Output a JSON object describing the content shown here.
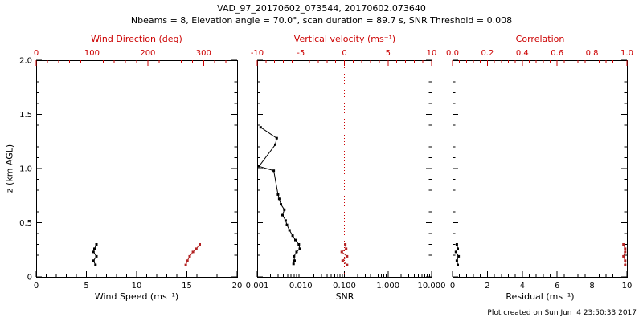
{
  "colors": {
    "background": "#ffffff",
    "black": "#000000",
    "axis_red": "#cc0000",
    "series_red": "#b22222"
  },
  "header": {
    "title": "VAD_97_20170602_073544, 20170602.073640",
    "subtitle": "Nbeams = 8, Elevation angle = 70.0°, scan duration = 89.7 s, SNR Threshold = 0.008"
  },
  "footer": {
    "created": "Plot created on Sun Jun  4 23:50:33 2017"
  },
  "y_axis": {
    "label": "z (km AGL)",
    "min": 0,
    "max": 2,
    "ticks": [
      0,
      0.5,
      1.0,
      1.5,
      2.0
    ],
    "tick_labels": [
      "0",
      "0.5",
      "1.0",
      "1.5",
      "2.0"
    ]
  },
  "chart_data": [
    {
      "name": "wind-speed-direction",
      "type": "line",
      "show_y_labels": true,
      "bottom_axis": {
        "label": "Wind Speed (ms⁻¹)",
        "scale": "linear",
        "min": 0,
        "max": 20,
        "ticks": [
          0,
          5,
          10,
          15,
          20
        ],
        "tick_labels": [
          "0",
          "5",
          "10",
          "15",
          "20"
        ]
      },
      "top_axis": {
        "label": "Wind Direction (deg)",
        "scale": "linear",
        "min": 0,
        "max": 360,
        "ticks": [
          0,
          100,
          200,
          300
        ],
        "tick_labels": [
          "0",
          "100",
          "200",
          "300"
        ]
      },
      "series": [
        {
          "name": "wind-speed",
          "color": "black",
          "axis": "bottom",
          "points": [
            [
              5.9,
              0.11
            ],
            [
              5.7,
              0.15
            ],
            [
              6.0,
              0.19
            ],
            [
              5.7,
              0.23
            ],
            [
              5.8,
              0.26
            ],
            [
              6.0,
              0.3
            ]
          ]
        },
        {
          "name": "wind-direction",
          "color": "red",
          "axis": "top",
          "points": [
            [
              268,
              0.11
            ],
            [
              271,
              0.15
            ],
            [
              275,
              0.19
            ],
            [
              281,
              0.23
            ],
            [
              287,
              0.26
            ],
            [
              293,
              0.3
            ]
          ]
        }
      ]
    },
    {
      "name": "snr-vertical-velocity",
      "type": "line",
      "show_y_labels": false,
      "zero_line": {
        "axis": "top",
        "value": 0
      },
      "bottom_axis": {
        "label": "SNR",
        "scale": "log",
        "min": 0.001,
        "max": 10,
        "ticks": [
          0.001,
          0.01,
          0.1,
          1,
          10
        ],
        "tick_labels": [
          "0.001",
          "0.010",
          "0.100",
          "1.000",
          "10.000"
        ]
      },
      "top_axis": {
        "label": "Vertical velocity (ms⁻¹)",
        "scale": "linear",
        "min": -10,
        "max": 10,
        "ticks": [
          -10,
          -5,
          0,
          5,
          10
        ],
        "tick_labels": [
          "-10",
          "-5",
          "0",
          "5",
          "10"
        ]
      },
      "series": [
        {
          "name": "snr-profile",
          "color": "black",
          "axis": "bottom",
          "points": [
            [
              0.0068,
              0.12
            ],
            [
              0.0072,
              0.15
            ],
            [
              0.007,
              0.19
            ],
            [
              0.008,
              0.23
            ],
            [
              0.0095,
              0.26
            ],
            [
              0.009,
              0.3
            ],
            [
              0.0075,
              0.34
            ],
            [
              0.0065,
              0.38
            ],
            [
              0.0055,
              0.43
            ],
            [
              0.0048,
              0.48
            ],
            [
              0.0045,
              0.52
            ],
            [
              0.0038,
              0.57
            ],
            [
              0.0042,
              0.62
            ],
            [
              0.0035,
              0.67
            ],
            [
              0.0032,
              0.72
            ],
            [
              0.003,
              0.76
            ],
            [
              0.0024,
              0.98
            ],
            [
              0.0011,
              1.02
            ],
            [
              0.0026,
              1.22
            ],
            [
              0.0028,
              1.28
            ],
            [
              0.0012,
              1.38
            ]
          ]
        },
        {
          "name": "vertical-velocity",
          "color": "red",
          "axis": "top",
          "points": [
            [
              0.3,
              0.11
            ],
            [
              -0.2,
              0.15
            ],
            [
              0.3,
              0.19
            ],
            [
              -0.3,
              0.23
            ],
            [
              0.2,
              0.26
            ],
            [
              0.1,
              0.3
            ]
          ]
        }
      ]
    },
    {
      "name": "residual-correlation",
      "type": "line",
      "show_y_labels": false,
      "bottom_axis": {
        "label": "Residual (ms⁻¹)",
        "scale": "linear",
        "min": 0,
        "max": 10,
        "ticks": [
          0,
          2,
          4,
          6,
          8,
          10
        ],
        "tick_labels": [
          "0",
          "2",
          "4",
          "6",
          "8",
          "10"
        ]
      },
      "top_axis": {
        "label": "Correlation",
        "scale": "linear",
        "min": 0,
        "max": 1,
        "ticks": [
          0,
          0.2,
          0.4,
          0.6,
          0.8,
          1.0
        ],
        "tick_labels": [
          "0.0",
          "0.2",
          "0.4",
          "0.6",
          "0.8",
          "1.0"
        ]
      },
      "series": [
        {
          "name": "residual",
          "color": "black",
          "axis": "bottom",
          "points": [
            [
              0.3,
              0.11
            ],
            [
              0.25,
              0.15
            ],
            [
              0.35,
              0.19
            ],
            [
              0.2,
              0.23
            ],
            [
              0.3,
              0.26
            ],
            [
              0.25,
              0.3
            ]
          ]
        },
        {
          "name": "correlation",
          "color": "red",
          "axis": "top",
          "points": [
            [
              0.99,
              0.11
            ],
            [
              0.99,
              0.15
            ],
            [
              0.98,
              0.19
            ],
            [
              0.99,
              0.23
            ],
            [
              0.99,
              0.26
            ],
            [
              0.98,
              0.3
            ]
          ]
        }
      ]
    }
  ]
}
